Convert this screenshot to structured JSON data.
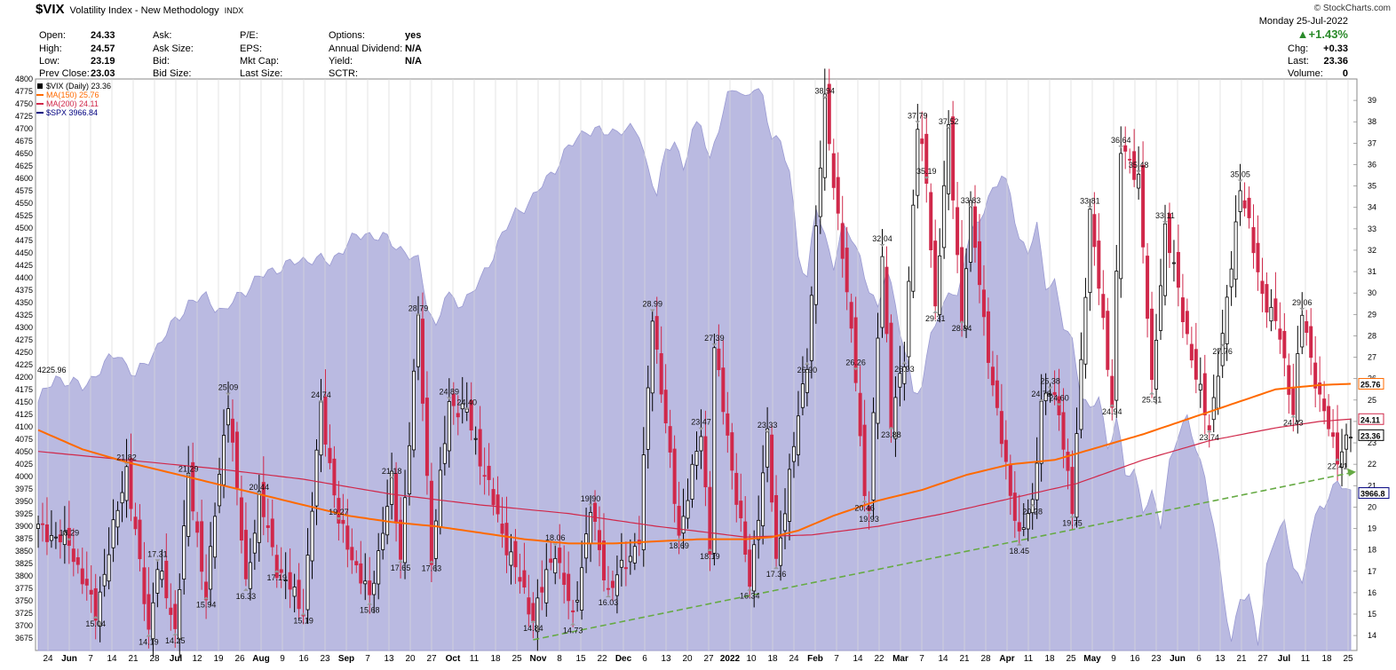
{
  "header": {
    "symbol": "$VIX",
    "description": "Volatility Index - New Methodology",
    "exchange": "INDX",
    "brand": "© StockCharts.com",
    "date": "Monday 25-Jul-2022",
    "change_pct": "▲+1.43%"
  },
  "quote": {
    "col1": [
      [
        "Open:",
        "24.33"
      ],
      [
        "High:",
        "24.57"
      ],
      [
        "Low:",
        "23.19"
      ],
      [
        "Prev Close:",
        "23.03"
      ]
    ],
    "col2": [
      [
        "Ask:",
        ""
      ],
      [
        "Ask Size:",
        ""
      ],
      [
        "Bid:",
        ""
      ],
      [
        "Bid Size:",
        ""
      ]
    ],
    "col3": [
      [
        "P/E:",
        ""
      ],
      [
        "EPS:",
        ""
      ],
      [
        "Mkt Cap:",
        ""
      ],
      [
        "Last Size:",
        ""
      ]
    ],
    "col4": [
      [
        "Options:",
        "yes"
      ],
      [
        "Annual Dividend:",
        "N/A"
      ],
      [
        "Yield:",
        "N/A"
      ],
      [
        "SCTR:",
        ""
      ]
    ],
    "col5": [
      [
        "Chg:",
        "+0.33"
      ],
      [
        "Last:",
        "23.36"
      ],
      [
        "Volume:",
        "0"
      ]
    ]
  },
  "legend": [
    {
      "label": "$VIX (Daily) 23.36",
      "color": "#000000"
    },
    {
      "label": "MA(150) 25.76",
      "color": "#ff6a00"
    },
    {
      "label": "MA(200) 24.11",
      "color": "#d0284a"
    },
    {
      "label": "$SPX 3966.84",
      "color": "#000080"
    }
  ],
  "colors": {
    "up": "#000000",
    "down": "#d0284a",
    "ma150": "#ff6a00",
    "ma200": "#d0284a",
    "spx_fill": "#b3b3de",
    "spx_line": "#9a9ad2",
    "trend": "#66aa44"
  },
  "chart_data": {
    "type": "candlestick+area",
    "left_axis": {
      "label": "$SPX",
      "ylim": [
        3650,
        4800
      ],
      "ticks": [
        4800,
        4775,
        4750,
        4725,
        4700,
        4675,
        4650,
        4625,
        4600,
        4575,
        4550,
        4525,
        4500,
        4475,
        4450,
        4425,
        4400,
        4375,
        4350,
        4325,
        4300,
        4275,
        4250,
        4225,
        4200,
        4175,
        4150,
        4125,
        4100,
        4075,
        4050,
        4025,
        4000,
        3975,
        3950,
        3925,
        3900,
        3875,
        3850,
        3825,
        3800,
        3775,
        3750,
        3725,
        3700,
        3675
      ]
    },
    "right_axis": {
      "label": "$VIX",
      "ylim": [
        13.3,
        40.0
      ],
      "ticks": [
        39,
        38,
        37,
        36,
        35,
        34,
        33,
        32,
        31,
        30,
        29,
        28,
        27,
        26,
        25,
        24,
        23,
        22,
        21,
        20,
        19,
        18,
        17,
        16,
        15,
        14
      ]
    },
    "x_labels": [
      "24",
      "Jun",
      "7",
      "14",
      "21",
      "28",
      "Jul",
      "12",
      "19",
      "26",
      "Aug",
      "9",
      "16",
      "23",
      "Sep",
      "7",
      "13",
      "20",
      "27",
      "Oct",
      "11",
      "18",
      "25",
      "Nov",
      "8",
      "15",
      "22",
      "Dec",
      "6",
      "13",
      "20",
      "27",
      "2022",
      "10",
      "18",
      "24",
      "Feb",
      "7",
      "14",
      "22",
      "Mar",
      "7",
      "14",
      "21",
      "28",
      "Apr",
      "11",
      "18",
      "25",
      "May",
      "9",
      "16",
      "23",
      "Jun",
      "6",
      "13",
      "21",
      "27",
      "Jul",
      "11",
      "18",
      "25"
    ],
    "vix_anchors": [
      [
        0,
        19
      ],
      [
        7,
        18.29
      ],
      [
        13,
        15.04
      ],
      [
        20,
        21.82
      ],
      [
        25,
        14.19
      ],
      [
        27,
        17.31
      ],
      [
        31,
        14.25
      ],
      [
        34,
        21.29
      ],
      [
        38,
        15.94
      ],
      [
        43,
        25.09
      ],
      [
        47,
        16.33
      ],
      [
        50,
        20.44
      ],
      [
        54,
        17.19
      ],
      [
        60,
        15.19
      ],
      [
        64,
        24.74
      ],
      [
        68,
        19.27
      ],
      [
        75,
        15.68
      ],
      [
        80,
        21.18
      ],
      [
        82,
        17.65
      ],
      [
        86,
        28.79
      ],
      [
        89,
        17.63
      ],
      [
        93,
        24.89
      ],
      [
        97,
        24.4
      ],
      [
        105,
        18.8
      ],
      [
        112,
        14.84
      ],
      [
        117,
        18.06
      ],
      [
        121,
        14.73
      ],
      [
        125,
        19.9
      ],
      [
        129,
        16.03
      ],
      [
        136,
        18.5
      ],
      [
        139,
        28.99
      ],
      [
        145,
        18.69
      ],
      [
        150,
        23.47
      ],
      [
        152,
        18.19
      ],
      [
        153,
        27.39
      ],
      [
        161,
        16.34
      ],
      [
        165,
        23.33
      ],
      [
        167,
        17.36
      ],
      [
        174,
        26.9
      ],
      [
        178,
        38.94
      ],
      [
        185,
        26.26
      ],
      [
        187,
        20.46
      ],
      [
        188,
        19.93
      ],
      [
        191,
        32.04
      ],
      [
        193,
        23.88
      ],
      [
        196,
        26.93
      ],
      [
        199,
        37.79
      ],
      [
        201,
        35.19
      ],
      [
        203,
        29.31
      ],
      [
        206,
        37.52
      ],
      [
        209,
        28.84
      ],
      [
        211,
        33.83
      ],
      [
        216,
        25.5
      ],
      [
        222,
        18.45
      ],
      [
        225,
        20.28
      ],
      [
        227,
        24.78
      ],
      [
        229,
        25.38
      ],
      [
        231,
        24.6
      ],
      [
        234,
        19.75
      ],
      [
        238,
        33.81
      ],
      [
        243,
        24.94
      ],
      [
        245,
        36.64
      ],
      [
        249,
        35.48
      ],
      [
        252,
        25.51
      ],
      [
        255,
        33.11
      ],
      [
        262,
        26
      ],
      [
        265,
        23.74
      ],
      [
        268,
        27.76
      ],
      [
        272,
        35.05
      ],
      [
        277,
        30
      ],
      [
        281,
        28
      ],
      [
        284,
        24.43
      ],
      [
        286,
        29.06
      ],
      [
        290,
        25
      ],
      [
        294,
        22.41
      ],
      [
        297,
        23.36
      ]
    ],
    "vix_labels": [
      [
        7,
        18.29,
        "above"
      ],
      [
        13,
        15.04,
        "below"
      ],
      [
        20,
        21.82,
        "above"
      ],
      [
        25,
        14.19,
        "below"
      ],
      [
        27,
        17.31,
        "above"
      ],
      [
        31,
        14.25,
        "below"
      ],
      [
        34,
        21.29,
        "above"
      ],
      [
        38,
        15.94,
        "below"
      ],
      [
        43,
        25.09,
        "above"
      ],
      [
        47,
        16.33,
        "below"
      ],
      [
        50,
        20.44,
        "above"
      ],
      [
        54,
        17.19,
        "below"
      ],
      [
        60,
        15.19,
        "below"
      ],
      [
        64,
        24.74,
        "above"
      ],
      [
        68,
        19.27,
        "above"
      ],
      [
        75,
        15.68,
        "below"
      ],
      [
        80,
        21.18,
        "above"
      ],
      [
        82,
        17.65,
        "below"
      ],
      [
        86,
        28.79,
        "above"
      ],
      [
        89,
        17.63,
        "below"
      ],
      [
        93,
        24.89,
        "above"
      ],
      [
        97,
        24.4,
        "above"
      ],
      [
        112,
        14.84,
        "below"
      ],
      [
        117,
        18.06,
        "above"
      ],
      [
        121,
        14.73,
        "below"
      ],
      [
        125,
        19.9,
        "above"
      ],
      [
        129,
        16.03,
        "below"
      ],
      [
        139,
        28.99,
        "above"
      ],
      [
        145,
        18.69,
        "below"
      ],
      [
        150,
        23.47,
        "above"
      ],
      [
        152,
        18.19,
        "below"
      ],
      [
        153,
        27.39,
        "above"
      ],
      [
        161,
        16.34,
        "below"
      ],
      [
        165,
        23.33,
        "above"
      ],
      [
        167,
        17.36,
        "below"
      ],
      [
        174,
        26.9,
        "below"
      ],
      [
        178,
        38.94,
        "above"
      ],
      [
        185,
        26.26,
        "above"
      ],
      [
        187,
        20.46,
        "below"
      ],
      [
        188,
        19.93,
        "below"
      ],
      [
        191,
        32.04,
        "above"
      ],
      [
        193,
        23.88,
        "below"
      ],
      [
        196,
        26.93,
        "below"
      ],
      [
        199,
        37.79,
        "above"
      ],
      [
        201,
        35.19,
        "above"
      ],
      [
        203,
        29.31,
        "below"
      ],
      [
        206,
        37.52,
        "above"
      ],
      [
        209,
        28.84,
        "below"
      ],
      [
        211,
        33.83,
        "above"
      ],
      [
        222,
        18.45,
        "below"
      ],
      [
        225,
        20.28,
        "below"
      ],
      [
        227,
        24.78,
        "above"
      ],
      [
        229,
        25.38,
        "above"
      ],
      [
        231,
        24.6,
        "above"
      ],
      [
        234,
        19.75,
        "below"
      ],
      [
        238,
        33.81,
        "above"
      ],
      [
        243,
        24.94,
        "below"
      ],
      [
        245,
        36.64,
        "above"
      ],
      [
        249,
        35.48,
        "above"
      ],
      [
        252,
        25.51,
        "below"
      ],
      [
        255,
        33.11,
        "above"
      ],
      [
        265,
        23.74,
        "below"
      ],
      [
        268,
        27.76,
        "below"
      ],
      [
        272,
        35.05,
        "above"
      ],
      [
        284,
        24.43,
        "below"
      ],
      [
        286,
        29.06,
        "above"
      ],
      [
        294,
        22.41,
        "below"
      ]
    ],
    "spx_anchors": [
      [
        0,
        4150
      ],
      [
        4,
        4200
      ],
      [
        10,
        4180
      ],
      [
        14,
        4215
      ],
      [
        18,
        4250
      ],
      [
        22,
        4200
      ],
      [
        26,
        4250
      ],
      [
        30,
        4300
      ],
      [
        34,
        4350
      ],
      [
        38,
        4360
      ],
      [
        42,
        4330
      ],
      [
        46,
        4370
      ],
      [
        50,
        4400
      ],
      [
        54,
        4420
      ],
      [
        58,
        4430
      ],
      [
        62,
        4440
      ],
      [
        66,
        4430
      ],
      [
        70,
        4470
      ],
      [
        74,
        4490
      ],
      [
        78,
        4480
      ],
      [
        82,
        4460
      ],
      [
        86,
        4430
      ],
      [
        88,
        4350
      ],
      [
        90,
        4300
      ],
      [
        92,
        4360
      ],
      [
        96,
        4350
      ],
      [
        100,
        4390
      ],
      [
        104,
        4470
      ],
      [
        108,
        4530
      ],
      [
        112,
        4560
      ],
      [
        116,
        4610
      ],
      [
        120,
        4660
      ],
      [
        124,
        4700
      ],
      [
        128,
        4690
      ],
      [
        132,
        4700
      ],
      [
        136,
        4690
      ],
      [
        138,
        4620
      ],
      [
        140,
        4570
      ],
      [
        142,
        4650
      ],
      [
        144,
        4680
      ],
      [
        146,
        4620
      ],
      [
        148,
        4690
      ],
      [
        150,
        4710
      ],
      [
        152,
        4640
      ],
      [
        154,
        4700
      ],
      [
        156,
        4760
      ],
      [
        158,
        4790
      ],
      [
        160,
        4760
      ],
      [
        162,
        4780
      ],
      [
        164,
        4760
      ],
      [
        166,
        4690
      ],
      [
        168,
        4670
      ],
      [
        170,
        4610
      ],
      [
        172,
        4450
      ],
      [
        174,
        4400
      ],
      [
        176,
        4540
      ],
      [
        178,
        4480
      ],
      [
        180,
        4430
      ],
      [
        182,
        4500
      ],
      [
        184,
        4480
      ],
      [
        186,
        4440
      ],
      [
        188,
        4380
      ],
      [
        190,
        4330
      ],
      [
        192,
        4420
      ],
      [
        194,
        4350
      ],
      [
        196,
        4250
      ],
      [
        198,
        4170
      ],
      [
        200,
        4180
      ],
      [
        202,
        4300
      ],
      [
        204,
        4310
      ],
      [
        206,
        4380
      ],
      [
        208,
        4360
      ],
      [
        210,
        4460
      ],
      [
        212,
        4500
      ],
      [
        214,
        4540
      ],
      [
        216,
        4580
      ],
      [
        218,
        4600
      ],
      [
        220,
        4570
      ],
      [
        222,
        4480
      ],
      [
        224,
        4450
      ],
      [
        226,
        4500
      ],
      [
        228,
        4390
      ],
      [
        230,
        4390
      ],
      [
        232,
        4300
      ],
      [
        234,
        4270
      ],
      [
        236,
        4170
      ],
      [
        238,
        4130
      ],
      [
        240,
        4160
      ],
      [
        242,
        4060
      ],
      [
        244,
        4120
      ],
      [
        246,
        4000
      ],
      [
        248,
        4010
      ],
      [
        250,
        3940
      ],
      [
        252,
        3960
      ],
      [
        254,
        3900
      ],
      [
        256,
        4030
      ],
      [
        258,
        4090
      ],
      [
        260,
        4110
      ],
      [
        262,
        4060
      ],
      [
        264,
        4000
      ],
      [
        266,
        3900
      ],
      [
        268,
        3770
      ],
      [
        270,
        3670
      ],
      [
        272,
        3760
      ],
      [
        274,
        3750
      ],
      [
        276,
        3670
      ],
      [
        278,
        3820
      ],
      [
        280,
        3880
      ],
      [
        282,
        3900
      ],
      [
        284,
        3830
      ],
      [
        286,
        3780
      ],
      [
        288,
        3880
      ],
      [
        290,
        3940
      ],
      [
        292,
        3960
      ],
      [
        294,
        3990
      ],
      [
        296,
        3967
      ]
    ],
    "ma150_anchors": [
      [
        0,
        23.6
      ],
      [
        10,
        22.7
      ],
      [
        20,
        22.1
      ],
      [
        30,
        21.6
      ],
      [
        40,
        21.1
      ],
      [
        50,
        20.6
      ],
      [
        60,
        20.1
      ],
      [
        70,
        19.6
      ],
      [
        80,
        19.3
      ],
      [
        90,
        19.1
      ],
      [
        100,
        18.8
      ],
      [
        110,
        18.5
      ],
      [
        120,
        18.3
      ],
      [
        130,
        18.3
      ],
      [
        140,
        18.4
      ],
      [
        150,
        18.5
      ],
      [
        160,
        18.5
      ],
      [
        166,
        18.6
      ],
      [
        172,
        18.9
      ],
      [
        180,
        19.6
      ],
      [
        190,
        20.3
      ],
      [
        200,
        20.8
      ],
      [
        210,
        21.5
      ],
      [
        220,
        22.0
      ],
      [
        230,
        22.2
      ],
      [
        240,
        22.8
      ],
      [
        250,
        23.4
      ],
      [
        260,
        24.1
      ],
      [
        270,
        24.8
      ],
      [
        280,
        25.5
      ],
      [
        290,
        25.7
      ],
      [
        297,
        25.76
      ]
    ],
    "ma200_anchors": [
      [
        0,
        22.6
      ],
      [
        20,
        22.2
      ],
      [
        40,
        21.8
      ],
      [
        60,
        21.3
      ],
      [
        80,
        20.6
      ],
      [
        100,
        20.1
      ],
      [
        120,
        19.7
      ],
      [
        140,
        19.1
      ],
      [
        160,
        18.6
      ],
      [
        175,
        18.7
      ],
      [
        190,
        19.1
      ],
      [
        205,
        19.7
      ],
      [
        220,
        20.4
      ],
      [
        235,
        21.1
      ],
      [
        250,
        22.2
      ],
      [
        265,
        23.1
      ],
      [
        280,
        23.7
      ],
      [
        290,
        24.0
      ],
      [
        297,
        24.11
      ]
    ],
    "trendline": {
      "start": [
        112,
        13.8
      ],
      "end": [
        297,
        21.6
      ]
    },
    "last_values": {
      "ma150": "25.76",
      "ma200": "24.11",
      "vix": "23.36",
      "spx": "3966.84",
      "spx_axis": "3966.8",
      "spx_start": "4225.96"
    }
  }
}
